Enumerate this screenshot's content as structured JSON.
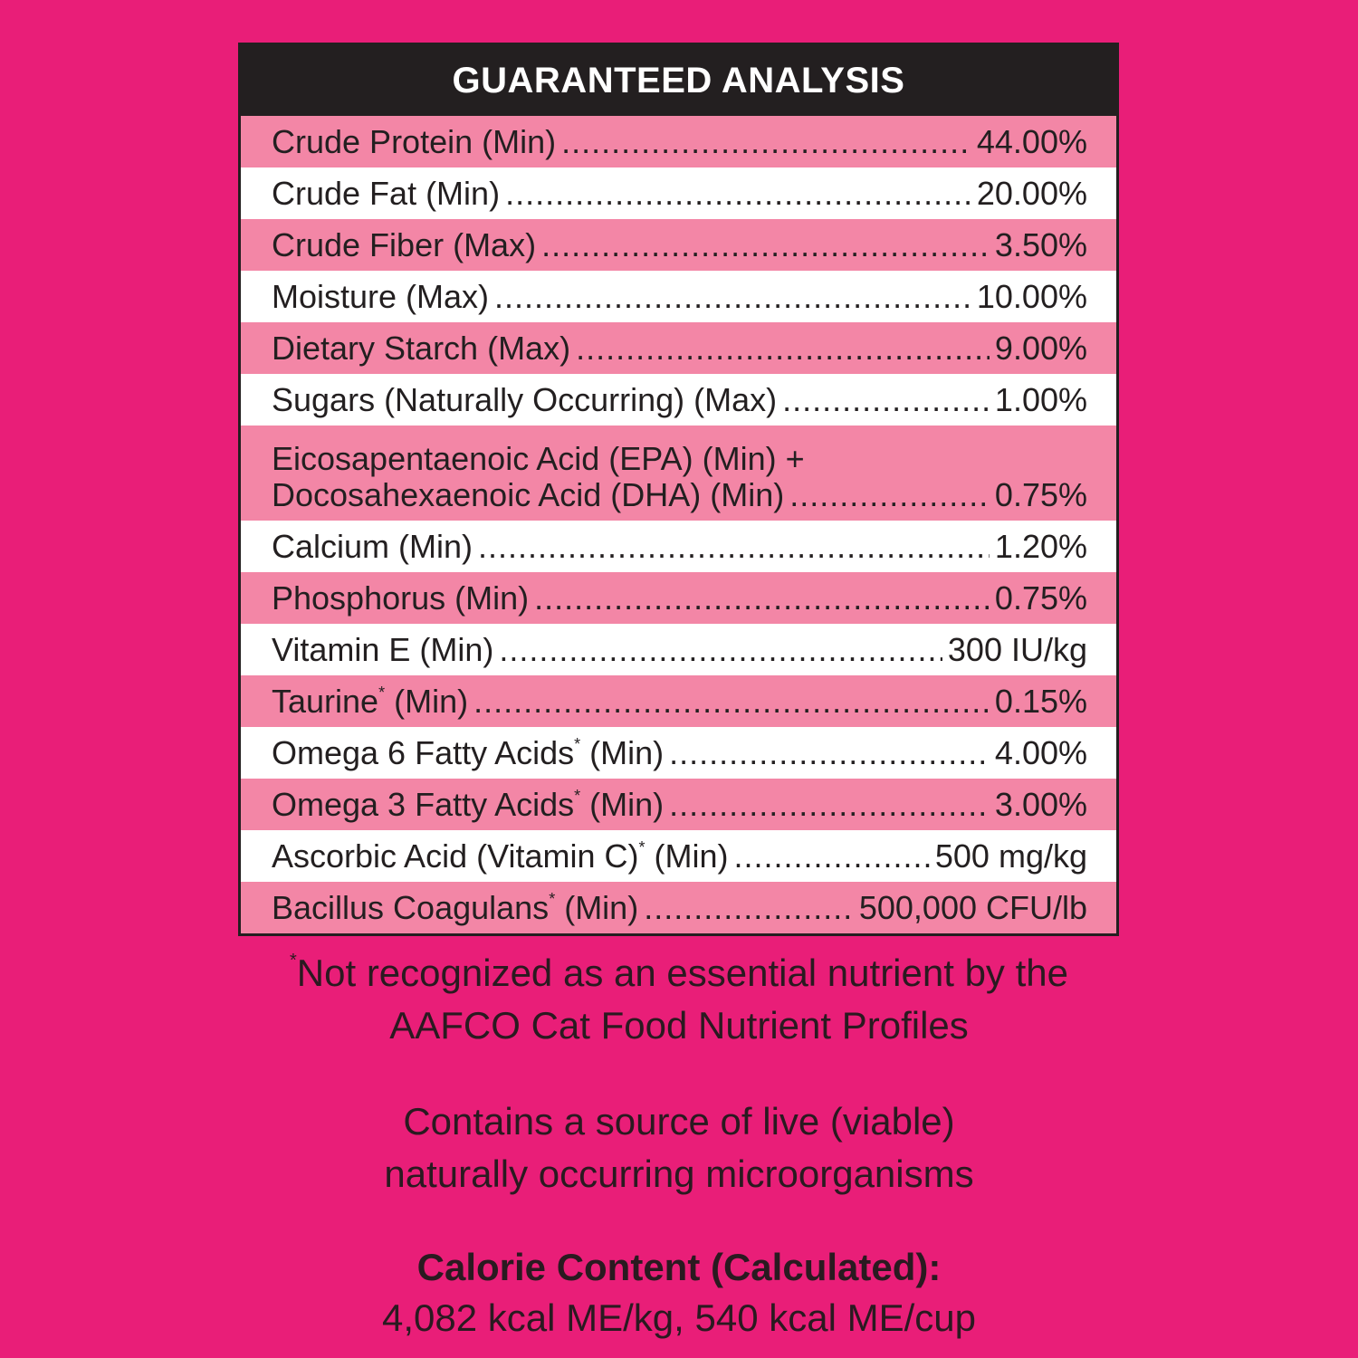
{
  "title": "GUARANTEED ANALYSIS",
  "rows": [
    {
      "label": "Crude Protein (Min)",
      "value": "44.00%"
    },
    {
      "label": "Crude Fat (Min)",
      "value": "20.00%"
    },
    {
      "label": "Crude Fiber (Max)",
      "value": "3.50%"
    },
    {
      "label": "Moisture (Max)",
      "value": "10.00%"
    },
    {
      "label": "Dietary Starch (Max)",
      "value": "9.00%"
    },
    {
      "label": "Sugars (Naturally Occurring) (Max)",
      "value": "1.00%"
    },
    {
      "label_line1": "Eicosapentaenoic Acid (EPA) (Min) +",
      "label": "Docosahexaenoic Acid (DHA) (Min)",
      "value": "0.75%"
    },
    {
      "label": "Calcium (Min)",
      "value": "1.20%"
    },
    {
      "label": "Phosphorus (Min)",
      "value": "0.75%"
    },
    {
      "label": "Vitamin E (Min)",
      "value": "300 IU/kg"
    },
    {
      "label": "Taurine",
      "sup": "*",
      "label_after": " (Min)",
      "value": "0.15%"
    },
    {
      "label": "Omega 6 Fatty Acids",
      "sup": "*",
      "label_after": " (Min)",
      "value": "4.00%"
    },
    {
      "label": "Omega 3 Fatty Acids",
      "sup": "*",
      "label_after": " (Min)",
      "value": "3.00%"
    },
    {
      "label": "Ascorbic Acid (Vitamin C)",
      "sup": "*",
      "label_after": " (Min)",
      "value": "500 mg/kg"
    },
    {
      "label": "Bacillus Coagulans",
      "sup": "*",
      "label_after": " (Min)",
      "value": "500,000 CFU/lb"
    }
  ],
  "footnote": {
    "mark": "*",
    "line1": "Not recognized as an essential nutrient by the",
    "line2": "AAFCO Cat Food Nutrient Profiles"
  },
  "live_note": {
    "line1": "Contains a source of live (viable)",
    "line2": "naturally occurring microorganisms"
  },
  "calorie": {
    "heading": "Calorie Content (Calculated):",
    "value": "4,082 kcal ME/kg, 540 kcal ME/cup"
  },
  "colors": {
    "background": "#E91E78",
    "row_pink": "#F386A6",
    "header": "#231F20"
  }
}
